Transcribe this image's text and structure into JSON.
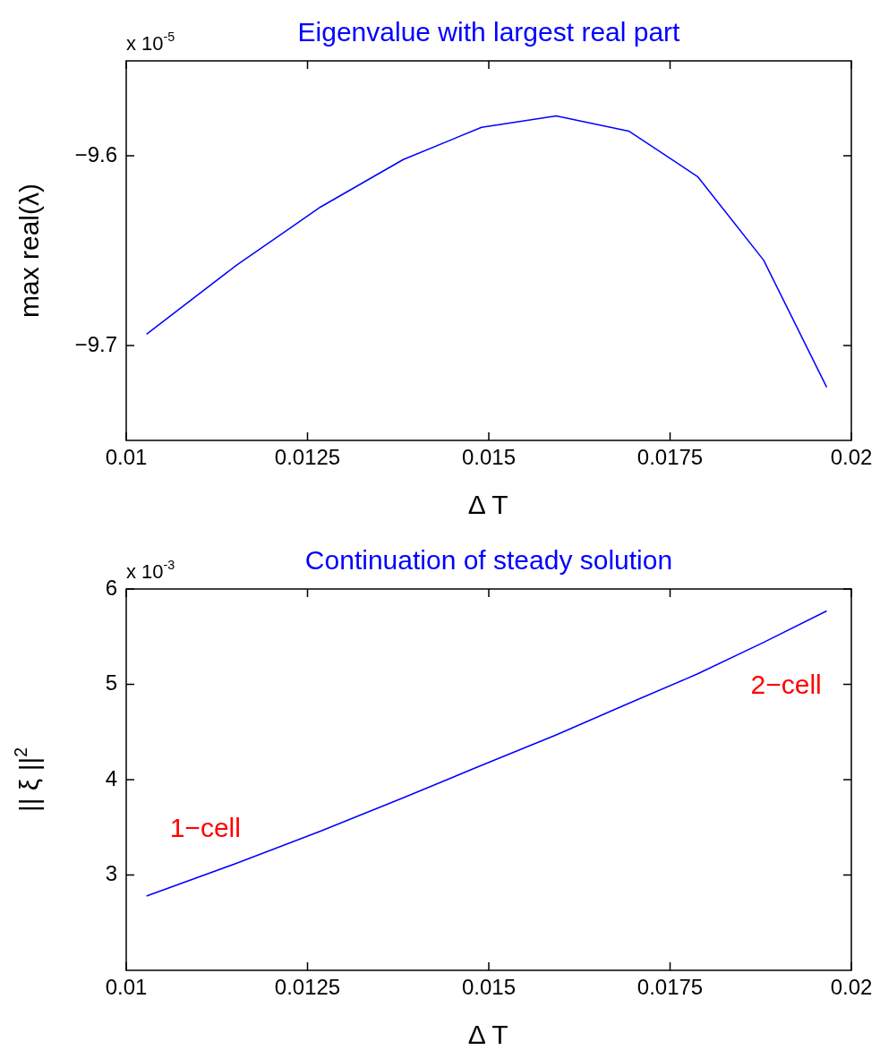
{
  "chart_data": [
    {
      "type": "line",
      "title": "Eigenvalue with largest real part",
      "xlabel": "Δ T",
      "ylabel": "max real(λ)",
      "x": [
        0.01028,
        0.01151,
        0.01268,
        0.01382,
        0.0149,
        0.01593,
        0.01693,
        0.01788,
        0.01879,
        0.01966
      ],
      "series": [
        {
          "color": "#0000ff",
          "values": [
            -9.694,
            -9.658,
            -9.627,
            -9.602,
            -9.585,
            -9.579,
            -9.587,
            -9.611,
            -9.655,
            -9.722
          ]
        }
      ],
      "xlim": [
        0.01,
        0.02
      ],
      "xticks": [
        0.01,
        0.0125,
        0.015,
        0.0175,
        0.02
      ],
      "ylim": [
        -9.75,
        -9.55
      ],
      "yticks": [
        -9.7,
        -9.6
      ],
      "annotations": [
        "x 10$^{-5}$"
      ],
      "grid": false,
      "legend": false,
      "marker": "none",
      "line_style": "solid"
    },
    {
      "type": "line",
      "title": "Continuation of steady solution",
      "xlabel": "Δ T",
      "ylabel": "|| ξ ||$^{2}$",
      "x": [
        0.01028,
        0.01151,
        0.01268,
        0.01382,
        0.0149,
        0.01593,
        0.01693,
        0.01788,
        0.01879,
        0.01966
      ],
      "series": [
        {
          "color": "#0000ff",
          "values": [
            2.78,
            3.12,
            3.46,
            3.81,
            4.15,
            4.47,
            4.8,
            5.11,
            5.44,
            5.77
          ]
        }
      ],
      "xlim": [
        0.01,
        0.02
      ],
      "xticks": [
        0.01,
        0.0125,
        0.015,
        0.0175,
        0.02
      ],
      "ylim": [
        2,
        6
      ],
      "yticks": [
        3,
        4,
        5,
        6
      ],
      "annotations": [
        "x 10$^{-3}$",
        "1−cell",
        "2−cell"
      ],
      "grid": false,
      "legend": false,
      "marker": "none",
      "line_style": "solid"
    }
  ]
}
